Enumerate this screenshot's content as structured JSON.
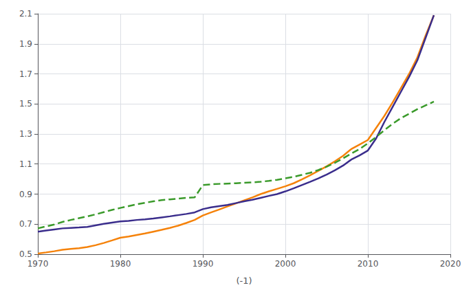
{
  "chart_data": {
    "type": "line",
    "xlabel": "(-1)",
    "xlim": [
      1970,
      2020
    ],
    "ylim": [
      0.5,
      2.1
    ],
    "xticks": [
      1970,
      1980,
      1990,
      2000,
      2010,
      2020
    ],
    "yticks": [
      0.5,
      0.7,
      0.9,
      1.1,
      1.3,
      1.5,
      1.7,
      1.9,
      2.1
    ],
    "grid": true,
    "x": [
      1970,
      1971,
      1972,
      1973,
      1974,
      1975,
      1976,
      1977,
      1978,
      1979,
      1980,
      1981,
      1982,
      1983,
      1984,
      1985,
      1986,
      1987,
      1988,
      1989,
      1990,
      1991,
      1992,
      1993,
      1994,
      1995,
      1996,
      1997,
      1998,
      1999,
      2000,
      2001,
      2002,
      2003,
      2004,
      2005,
      2006,
      2007,
      2008,
      2009,
      2010,
      2011,
      2012,
      2013,
      2014,
      2015,
      2016,
      2017,
      2018
    ],
    "series": [
      {
        "color": "#f5820a",
        "line_style": "solid",
        "values": [
          0.505,
          0.512,
          0.52,
          0.53,
          0.535,
          0.54,
          0.548,
          0.56,
          0.575,
          0.592,
          0.61,
          0.618,
          0.628,
          0.638,
          0.65,
          0.662,
          0.675,
          0.69,
          0.708,
          0.728,
          0.758,
          0.778,
          0.798,
          0.818,
          0.838,
          0.858,
          0.878,
          0.9,
          0.918,
          0.935,
          0.952,
          0.972,
          0.998,
          1.025,
          1.055,
          1.085,
          1.118,
          1.155,
          1.2,
          1.23,
          1.26,
          1.34,
          1.42,
          1.51,
          1.605,
          1.7,
          1.81,
          1.955,
          2.09
        ]
      },
      {
        "color": "#3a2d8c",
        "line_style": "solid",
        "values": [
          0.65,
          0.658,
          0.665,
          0.672,
          0.675,
          0.678,
          0.682,
          0.692,
          0.702,
          0.71,
          0.718,
          0.722,
          0.728,
          0.732,
          0.738,
          0.745,
          0.752,
          0.76,
          0.768,
          0.778,
          0.8,
          0.812,
          0.82,
          0.828,
          0.84,
          0.852,
          0.862,
          0.875,
          0.888,
          0.9,
          0.918,
          0.938,
          0.96,
          0.982,
          1.005,
          1.03,
          1.058,
          1.09,
          1.13,
          1.158,
          1.19,
          1.27,
          1.38,
          1.48,
          1.58,
          1.68,
          1.79,
          1.94,
          2.09
        ]
      },
      {
        "color": "#3a9a2a",
        "line_style": "dashed",
        "values": [
          0.672,
          0.685,
          0.698,
          0.715,
          0.728,
          0.74,
          0.752,
          0.765,
          0.78,
          0.795,
          0.808,
          0.82,
          0.832,
          0.842,
          0.852,
          0.86,
          0.865,
          0.87,
          0.875,
          0.878,
          0.96,
          0.965,
          0.968,
          0.97,
          0.972,
          0.975,
          0.978,
          0.982,
          0.988,
          0.995,
          1.005,
          1.015,
          1.028,
          1.042,
          1.06,
          1.082,
          1.108,
          1.138,
          1.17,
          1.2,
          1.238,
          1.28,
          1.325,
          1.368,
          1.405,
          1.435,
          1.465,
          1.49,
          1.515
        ]
      }
    ]
  }
}
